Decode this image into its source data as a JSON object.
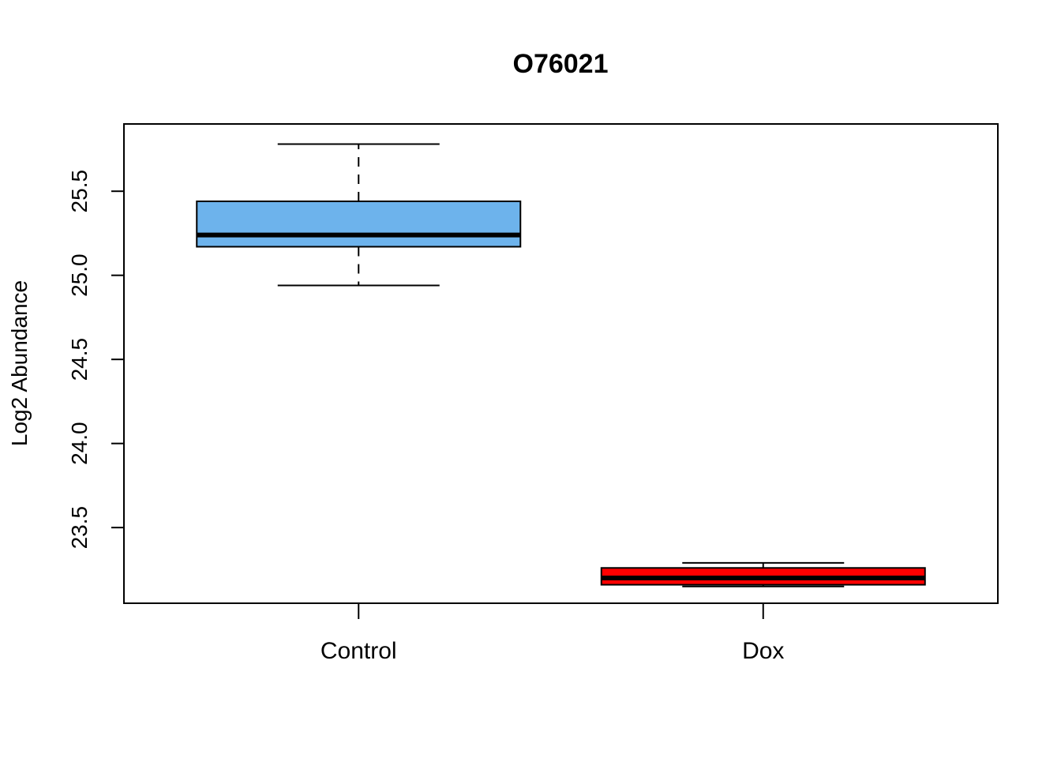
{
  "chart_data": {
    "type": "boxplot",
    "title": "O76021",
    "xlabel": "",
    "ylabel": "Log2 Abundance",
    "ylim": [
      23.05,
      25.9
    ],
    "yticks": [
      23.5,
      24.0,
      24.5,
      25.0,
      25.5
    ],
    "ytick_labels": [
      "23.5",
      "24.0",
      "24.5",
      "25.0",
      "25.5"
    ],
    "grid": false,
    "categories": [
      "Control",
      "Dox"
    ],
    "boxes": [
      {
        "category": "Control",
        "color": "#6db3ec",
        "min": 24.94,
        "q1": 25.17,
        "median": 25.24,
        "q3": 25.44,
        "max": 25.78
      },
      {
        "category": "Dox",
        "color": "#ff0000",
        "min": 23.15,
        "q1": 23.16,
        "median": 23.2,
        "q3": 23.26,
        "max": 23.29
      }
    ]
  }
}
